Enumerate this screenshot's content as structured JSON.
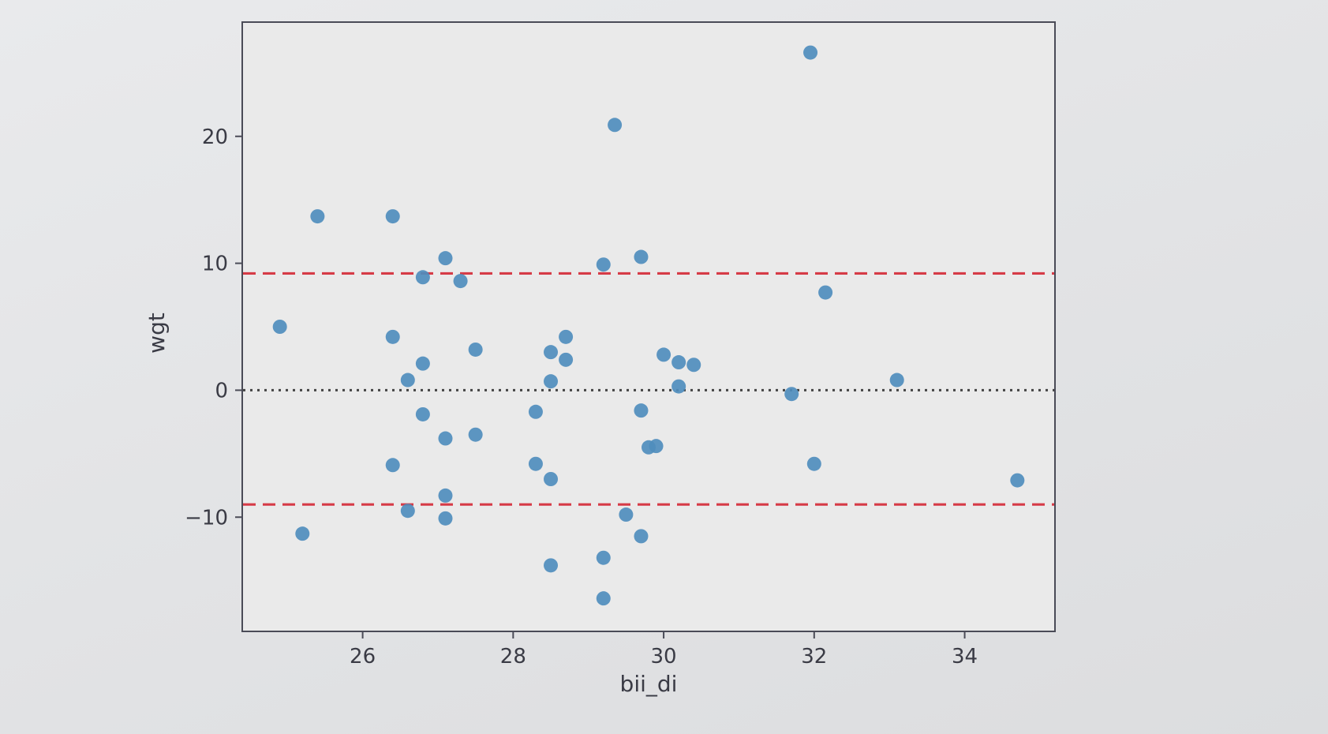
{
  "chart_data": {
    "type": "scatter",
    "title": "",
    "xlabel": "bii_di",
    "ylabel": "wgt",
    "xlim": [
      24.4,
      35.2
    ],
    "ylim": [
      -19,
      29
    ],
    "x_ticks": [
      26,
      28,
      30,
      32,
      34
    ],
    "x_tick_labels": [
      "26",
      "28",
      "30",
      "32",
      "34"
    ],
    "y_ticks": [
      -10,
      0,
      10,
      20
    ],
    "y_tick_labels": [
      "−10",
      "0",
      "10",
      "20"
    ],
    "grid": false,
    "legend": "none",
    "series": [
      {
        "x": [
          24.9,
          25.2,
          25.4,
          26.4,
          26.4,
          26.4,
          26.6,
          26.6,
          26.8,
          26.8,
          26.8,
          27.1,
          27.1,
          27.1,
          27.1,
          27.3,
          27.5,
          27.5,
          28.3,
          28.3,
          28.5,
          28.5,
          28.5,
          28.5,
          28.7,
          28.7,
          29.2,
          29.2,
          29.2,
          29.35,
          29.5,
          29.7,
          29.7,
          29.7,
          29.8,
          29.9,
          30.0,
          30.2,
          30.2,
          30.4,
          31.7,
          31.95,
          32.0,
          32.15,
          33.1,
          34.7
        ],
        "y": [
          5,
          -11.3,
          13.7,
          13.7,
          4.2,
          -5.9,
          0.8,
          -9.5,
          8.9,
          2.1,
          -1.9,
          10.4,
          -3.8,
          -8.3,
          -10.1,
          8.6,
          3.2,
          -3.5,
          -1.7,
          -5.8,
          3.0,
          0.7,
          -7.0,
          -13.8,
          4.2,
          2.4,
          9.9,
          -13.2,
          -16.4,
          20.9,
          -9.8,
          10.5,
          -1.6,
          -11.5,
          -4.5,
          -4.4,
          2.8,
          2.2,
          0.3,
          2.0,
          -0.3,
          26.6,
          -5.8,
          7.7,
          0.8,
          -7.1
        ],
        "color": "#4f8dbd"
      }
    ],
    "reference_lines": [
      {
        "y": 0,
        "style": "dotted",
        "color": "#444444"
      },
      {
        "y": 9.2,
        "style": "dashed",
        "color": "#d63b47"
      },
      {
        "y": -9.0,
        "style": "dashed",
        "color": "#d63b47"
      }
    ]
  }
}
